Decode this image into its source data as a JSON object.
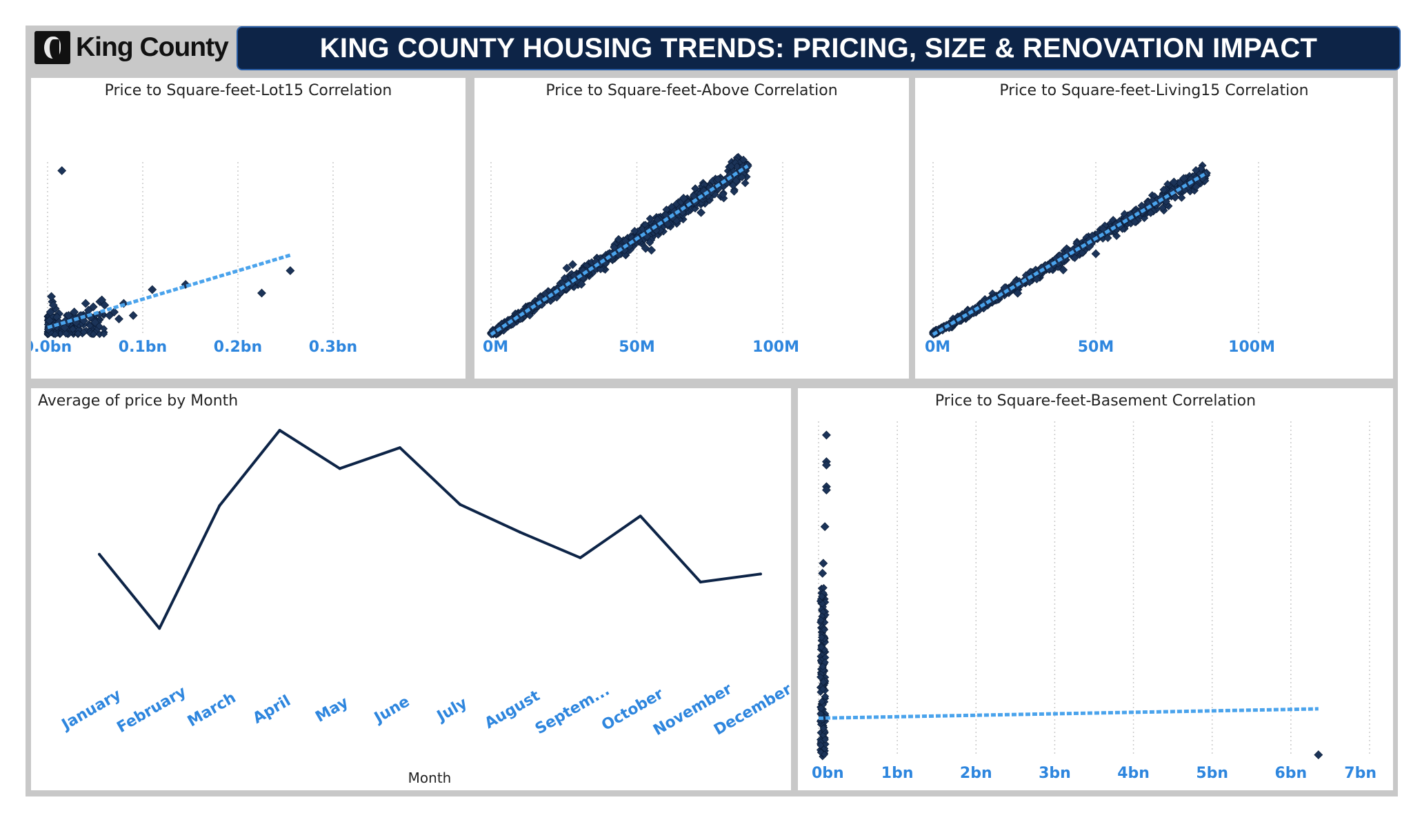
{
  "header": {
    "logo_text": "King County",
    "title": "KING COUNTY HOUSING TRENDS: PRICING, SIZE & RENOVATION IMPACT"
  },
  "colors": {
    "point": "#1b3358",
    "trend": "#4aa3ec",
    "line": "#0d2447",
    "tick": "#2e86de",
    "frame": "#c8c8c8",
    "banner": "#0d2447"
  },
  "chart_data": [
    {
      "id": "lot15",
      "type": "scatter",
      "title": "Price to Square-feet-Lot15 Correlation",
      "xlim": [
        0,
        0.3
      ],
      "ylim": [
        0,
        1
      ],
      "xticks": [
        0,
        0.1,
        0.2,
        0.3
      ],
      "xtick_labels": [
        "0.0bn",
        "0.1bn",
        "0.2bn",
        "0.3bn"
      ],
      "grid": "vertical dotted",
      "trend": [
        [
          0,
          0.04
        ],
        [
          0.255,
          0.46
        ]
      ],
      "points": [
        [
          0.015,
          0.95
        ],
        [
          0.11,
          0.26
        ],
        [
          0.145,
          0.29
        ],
        [
          0.225,
          0.24
        ],
        [
          0.255,
          0.37
        ],
        [
          0.08,
          0.18
        ],
        [
          0.09,
          0.11
        ],
        [
          0.055,
          0.19
        ],
        [
          0.057,
          0.2
        ],
        [
          0.06,
          0.17
        ],
        [
          0.048,
          0.16
        ],
        [
          0.04,
          0.18
        ],
        [
          0.043,
          0.14
        ],
        [
          0.07,
          0.13
        ],
        [
          0.075,
          0.09
        ],
        [
          0.035,
          0.11
        ],
        [
          0.03,
          0.07
        ],
        [
          0.025,
          0.09
        ],
        [
          0.02,
          0.06
        ],
        [
          0.012,
          0.12
        ],
        [
          0.008,
          0.15
        ],
        [
          0.005,
          0.19
        ],
        [
          0.004,
          0.22
        ],
        [
          0.006,
          0.17
        ],
        [
          0.003,
          0.13
        ],
        [
          0.01,
          0.1
        ],
        [
          0.002,
          0.08
        ],
        [
          0.015,
          0.05
        ],
        [
          0.022,
          0.11
        ],
        [
          0.028,
          0.13
        ],
        [
          0.038,
          0.08
        ],
        [
          0.045,
          0.1
        ],
        [
          0.05,
          0.07
        ],
        [
          0.065,
          0.11
        ],
        [
          0.018,
          0.04
        ],
        [
          0.012,
          0.07
        ],
        [
          0.006,
          0.05
        ],
        [
          0.001,
          0.03
        ]
      ],
      "cluster": {
        "x": [
          0,
          0.06
        ],
        "y": [
          0,
          0.12
        ],
        "n": 180
      }
    },
    {
      "id": "above",
      "type": "scatter",
      "title": "Price to Square-feet-Above Correlation",
      "xlim": [
        0,
        100
      ],
      "ylim": [
        0,
        100
      ],
      "xticks": [
        0,
        50,
        100
      ],
      "xtick_labels": [
        "0M",
        "50M",
        "100M"
      ],
      "grid": "vertical dotted",
      "trend": [
        [
          0,
          0
        ],
        [
          88,
          94
        ]
      ],
      "band": {
        "x": [
          0,
          88
        ],
        "slope": 1.065,
        "spread": 9,
        "n": 800
      },
      "points": [
        [
          88,
          94
        ],
        [
          73,
          80
        ],
        [
          66,
          76
        ],
        [
          72,
          68
        ],
        [
          53,
          48
        ],
        [
          55,
          47
        ],
        [
          31,
          28
        ],
        [
          28,
          39
        ],
        [
          26,
          37
        ]
      ]
    },
    {
      "id": "living15",
      "type": "scatter",
      "title": "Price to Square-feet-Living15 Correlation",
      "xlim": [
        0,
        100
      ],
      "ylim": [
        0,
        100
      ],
      "xticks": [
        0,
        50,
        100
      ],
      "xtick_labels": [
        "0M",
        "50M",
        "100M"
      ],
      "grid": "vertical dotted",
      "trend": [
        [
          0,
          0
        ],
        [
          84,
          90
        ]
      ],
      "band": {
        "x": [
          0,
          84
        ],
        "slope": 1.07,
        "spread": 7,
        "n": 700
      },
      "points": [
        [
          84,
          90
        ],
        [
          77,
          87
        ],
        [
          79,
          84
        ],
        [
          74,
          85
        ],
        [
          48,
          49
        ],
        [
          50,
          45
        ],
        [
          26,
          23
        ],
        [
          22,
          26
        ],
        [
          40,
          36
        ]
      ]
    },
    {
      "id": "price_month",
      "type": "line",
      "title": "Average of price by Month",
      "xlabel": "Month",
      "categories": [
        "January",
        "February",
        "March",
        "April",
        "May",
        "June",
        "July",
        "August",
        "Septem...",
        "October",
        "November",
        "December"
      ],
      "values": [
        0.465,
        0.145,
        0.675,
        1.0,
        0.835,
        0.925,
        0.68,
        0.56,
        0.45,
        0.63,
        0.345,
        0.38
      ],
      "ylim": [
        0,
        1
      ]
    },
    {
      "id": "basement",
      "type": "scatter",
      "title": "Price to Square-feet-Basement Correlation",
      "xlim": [
        0,
        7
      ],
      "ylim": [
        0,
        1
      ],
      "xticks": [
        0,
        1,
        2,
        3,
        4,
        5,
        6,
        7
      ],
      "xtick_labels": [
        "0bn",
        "1bn",
        "2bn",
        "3bn",
        "4bn",
        "5bn",
        "6bn",
        "7bn"
      ],
      "grid": "vertical dotted",
      "trend": [
        [
          0,
          0.115
        ],
        [
          6.35,
          0.143
        ]
      ],
      "points": [
        [
          0.1,
          0.965
        ],
        [
          0.1,
          0.885
        ],
        [
          0.1,
          0.875
        ],
        [
          0.1,
          0.81
        ],
        [
          0.1,
          0.8
        ],
        [
          0.08,
          0.69
        ],
        [
          6.35,
          0.005
        ],
        [
          0.06,
          0.58
        ],
        [
          0.05,
          0.55
        ]
      ],
      "column": {
        "x": [
          0.02,
          0.09
        ],
        "y": [
          0.0,
          0.52
        ],
        "n": 160
      }
    }
  ]
}
